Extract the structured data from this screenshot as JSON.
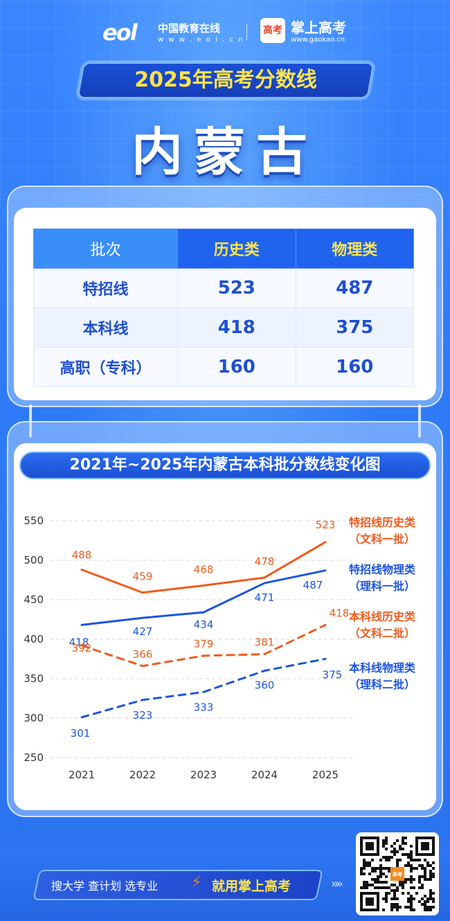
{
  "header": {
    "eol_mark": "eol",
    "eol_name": "中国教育在线",
    "eol_url": "w w w . e o l . c n",
    "gk_icon_text": "高考",
    "gk_name": "掌上高考",
    "gk_url": "www.gaokao.cn"
  },
  "title": "2025年高考分数线",
  "region": "内蒙古",
  "table": {
    "headers": [
      "批次",
      "历史类",
      "物理类"
    ],
    "rows": [
      {
        "label": "特招线",
        "history": "523",
        "physics": "487"
      },
      {
        "label": "本科线",
        "history": "418",
        "physics": "375"
      },
      {
        "label": "高职（专科）",
        "history": "160",
        "physics": "160"
      }
    ]
  },
  "chart_data": {
    "type": "line",
    "title": "2021年~2025年内蒙古本科批分数线变化图",
    "x": [
      "2021",
      "2022",
      "2023",
      "2024",
      "2025"
    ],
    "yticks": [
      "550",
      "500",
      "450",
      "400",
      "350",
      "300",
      "250"
    ],
    "ylim": [
      250,
      550
    ],
    "grid": true,
    "series": [
      {
        "name": "特招线历史类",
        "sub": "（文科一批）",
        "values": [
          488,
          459,
          468,
          478,
          523
        ],
        "color": "#f25a1d",
        "dashed": false
      },
      {
        "name": "特招线物理类",
        "sub": "（理科一批）",
        "values": [
          418,
          427,
          434,
          471,
          487
        ],
        "color": "#1d55e0",
        "dashed": false
      },
      {
        "name": "本科线历史类",
        "sub": "（文科二批）",
        "values": [
          392,
          366,
          379,
          381,
          418
        ],
        "color": "#f25a1d",
        "dashed": true
      },
      {
        "name": "本科线物理类",
        "sub": "（理科二批）",
        "values": [
          301,
          323,
          333,
          360,
          375
        ],
        "color": "#1d55e0",
        "dashed": true
      }
    ]
  },
  "footer": {
    "slogan_left": "搜大学  查计划  选专业",
    "slogan_right": "就用掌上高考",
    "qr_badge": "高考"
  }
}
